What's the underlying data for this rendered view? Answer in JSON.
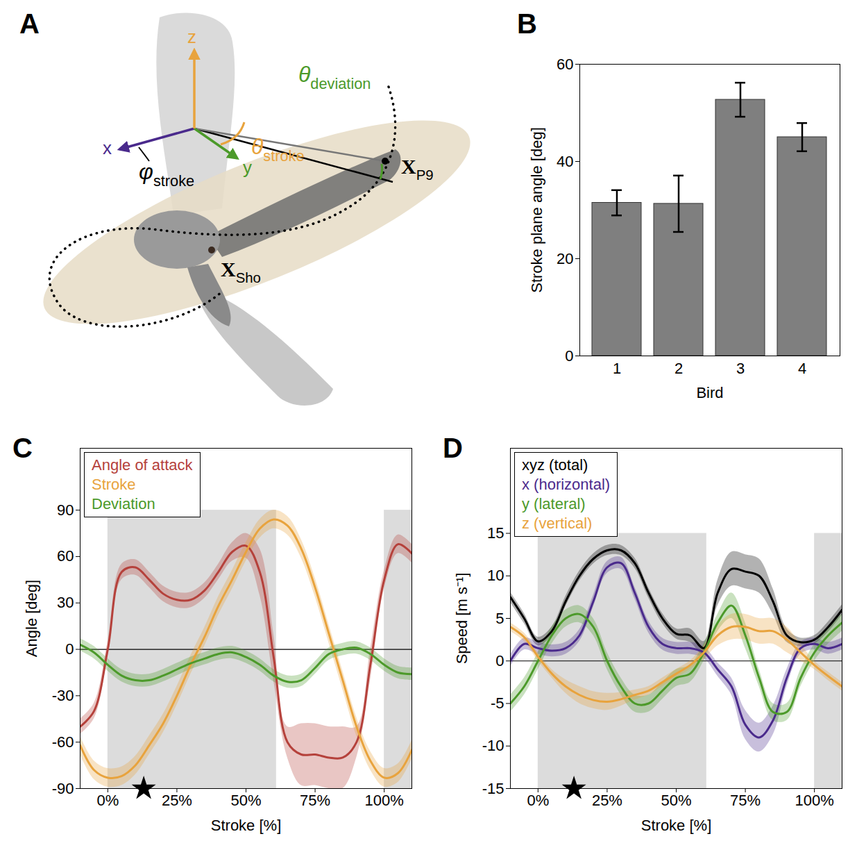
{
  "diagram": {
    "panel": "A",
    "axes": [
      {
        "name": "x",
        "color": "#4a2a8c"
      },
      {
        "name": "y",
        "color": "#4c9a2a"
      },
      {
        "name": "z",
        "color": "#e8a33d"
      }
    ],
    "angles": [
      {
        "symbol": "θ",
        "subscript": "deviation",
        "color": "#4c9a2a"
      },
      {
        "symbol": "θ",
        "subscript": "stroke",
        "color": "#e8a33d"
      },
      {
        "symbol": "φ",
        "subscript": "stroke",
        "color": "#000000"
      }
    ],
    "points": [
      {
        "symbol": "X",
        "subscript": "P9"
      },
      {
        "symbol": "X",
        "subscript": "Sho"
      }
    ]
  },
  "chart_data": [
    {
      "panel": "B",
      "type": "bar",
      "xlabel": "Bird",
      "ylabel": "Stroke plane angle [deg]",
      "categories": [
        "1",
        "2",
        "3",
        "4"
      ],
      "values": [
        31.5,
        31.3,
        52.7,
        45.0
      ],
      "errors": [
        2.6,
        5.8,
        3.5,
        2.9
      ],
      "color": "#7f7f7f",
      "ylim": [
        0,
        60
      ],
      "yticks": [
        0,
        20,
        40,
        60
      ]
    },
    {
      "panel": "C",
      "type": "line",
      "xlabel": "Stroke [%]",
      "ylabel": "Angle [deg]",
      "x": [
        -10,
        -5,
        0,
        5,
        10,
        15,
        20,
        25,
        30,
        35,
        40,
        45,
        50,
        55,
        60,
        65,
        70,
        75,
        80,
        85,
        90,
        95,
        100,
        105,
        110
      ],
      "xlim": [
        -10,
        110
      ],
      "xticks": [
        {
          "value": 0,
          "label": "0%"
        },
        {
          "value": 25,
          "label": "25%"
        },
        {
          "value": 50,
          "label": "50%"
        },
        {
          "value": 75,
          "label": "75%"
        },
        {
          "value": 100,
          "label": "100%"
        }
      ],
      "ylim": [
        -90,
        130
      ],
      "yticks": [
        -90,
        -60,
        -30,
        0,
        30,
        60,
        90
      ],
      "legend": "top-left",
      "hline": 0,
      "shaded": [
        {
          "x1": 0,
          "x2": 61,
          "y1": -90,
          "y2": 90
        },
        {
          "x1": 100,
          "x2": 110,
          "y1": -90,
          "y2": 90
        }
      ],
      "star_x": 13,
      "series": [
        {
          "name": "Angle of attack",
          "color": "#b5413b",
          "values": [
            -50,
            -40,
            0,
            50,
            53,
            45,
            36,
            32,
            32,
            38,
            50,
            63,
            67,
            50,
            -5,
            -60,
            -68,
            -68,
            -70,
            -70,
            -60,
            -10,
            45,
            68,
            62
          ],
          "errors": [
            5,
            5,
            5,
            5,
            5,
            5,
            5,
            5,
            5,
            5,
            5,
            6,
            8,
            15,
            15,
            10,
            20,
            20,
            20,
            20,
            10,
            10,
            6,
            6,
            6
          ]
        },
        {
          "name": "Stroke",
          "color": "#e8a33d",
          "values": [
            -62,
            -78,
            -83,
            -82,
            -75,
            -62,
            -48,
            -30,
            -10,
            8,
            28,
            45,
            63,
            78,
            84,
            80,
            65,
            40,
            10,
            -20,
            -50,
            -72,
            -83,
            -80,
            -65
          ],
          "errors": [
            6,
            6,
            6,
            6,
            6,
            6,
            6,
            6,
            6,
            6,
            6,
            6,
            6,
            6,
            6,
            6,
            6,
            6,
            6,
            6,
            6,
            6,
            6,
            6,
            6
          ]
        },
        {
          "name": "Deviation",
          "color": "#4c9a2a",
          "values": [
            3,
            -2,
            -10,
            -17,
            -20,
            -20,
            -17,
            -13,
            -9,
            -6,
            -3,
            -2,
            -5,
            -10,
            -17,
            -21,
            -20,
            -12,
            -3,
            0,
            1,
            -3,
            -10,
            -15,
            -16
          ],
          "errors": [
            4,
            4,
            4,
            4,
            4,
            4,
            4,
            4,
            4,
            4,
            4,
            4,
            4,
            4,
            4,
            4,
            4,
            4,
            4,
            4,
            4,
            4,
            4,
            4,
            4
          ]
        }
      ]
    },
    {
      "panel": "D",
      "type": "line",
      "xlabel": "Stroke [%]",
      "ylabel": "Speed [m s⁻¹]",
      "x": [
        -10,
        -5,
        0,
        5,
        10,
        15,
        20,
        25,
        30,
        35,
        40,
        45,
        50,
        55,
        60,
        65,
        70,
        75,
        80,
        85,
        90,
        95,
        100,
        105,
        110
      ],
      "xlim": [
        -10,
        110
      ],
      "xticks": [
        {
          "value": 0,
          "label": "0%"
        },
        {
          "value": 25,
          "label": "25%"
        },
        {
          "value": 50,
          "label": "50%"
        },
        {
          "value": 75,
          "label": "75%"
        },
        {
          "value": 100,
          "label": "100%"
        }
      ],
      "ylim": [
        -15,
        25
      ],
      "yticks": [
        -15,
        -10,
        -5,
        0,
        5,
        10,
        15
      ],
      "legend": "top-left",
      "hline": 0,
      "shaded": [
        {
          "x1": 0,
          "x2": 61,
          "y1": -15,
          "y2": 15
        },
        {
          "x1": 100,
          "x2": 110,
          "y1": -15,
          "y2": 15
        }
      ],
      "star_x": 13,
      "series": [
        {
          "name": "xyz (total)",
          "color": "#000000",
          "values": [
            7.5,
            5,
            2.3,
            3.5,
            7,
            10,
            12,
            13,
            13,
            11.5,
            8,
            5,
            3.2,
            3,
            1.5,
            8,
            10.8,
            10.5,
            10,
            7,
            3,
            2.2,
            2.5,
            4,
            6
          ],
          "errors": [
            0.6,
            0.6,
            0.5,
            0.5,
            0.6,
            0.6,
            0.6,
            0.6,
            0.6,
            0.6,
            0.6,
            0.6,
            0.6,
            0.8,
            0.8,
            1.5,
            2,
            2,
            2,
            1.5,
            0.8,
            0.5,
            0.5,
            0.6,
            0.6
          ]
        },
        {
          "name": "x (horizontal)",
          "color": "#4a2a8c",
          "values": [
            0,
            2,
            1.5,
            1.2,
            1.5,
            3,
            7,
            11,
            11.5,
            8,
            4,
            2,
            1.5,
            1.5,
            1,
            -1,
            -3,
            -7.5,
            -9,
            -7,
            -2,
            1.5,
            2,
            1.5,
            2
          ],
          "errors": [
            0.7,
            0.7,
            0.7,
            0.7,
            0.7,
            0.7,
            0.7,
            0.7,
            0.7,
            0.7,
            0.7,
            0.7,
            0.7,
            0.7,
            0.7,
            0.8,
            1,
            1.7,
            1.7,
            1.7,
            1,
            0.7,
            0.7,
            0.7,
            0.7
          ]
        },
        {
          "name": "y (lateral)",
          "color": "#4c9a2a",
          "values": [
            -5,
            -3,
            0,
            3,
            5,
            5.5,
            4,
            0,
            -3,
            -5,
            -5,
            -3.5,
            -2,
            -1.5,
            1,
            4.5,
            6.5,
            3,
            -2,
            -6,
            -6,
            -2,
            1,
            3,
            4.5
          ],
          "errors": [
            1,
            1,
            1,
            1,
            1,
            1,
            1,
            1,
            1,
            1,
            1,
            1,
            1,
            1,
            1,
            1,
            1.5,
            1.5,
            1,
            1,
            1,
            1,
            1,
            1,
            1
          ]
        },
        {
          "name": "z (vertical)",
          "color": "#e8a33d",
          "values": [
            4,
            2.8,
            0.5,
            -1.5,
            -3,
            -4,
            -4.6,
            -4.8,
            -4.5,
            -4,
            -3.5,
            -2.5,
            -1.5,
            -0.5,
            1,
            3,
            4,
            4,
            3.5,
            3.5,
            2.5,
            1,
            -0.5,
            -1.8,
            -3
          ],
          "errors": [
            0.5,
            0.5,
            0.5,
            0.5,
            0.8,
            1,
            1,
            1,
            0.8,
            0.6,
            0.5,
            0.5,
            0.5,
            0.5,
            0.8,
            1.2,
            1.5,
            1.5,
            1.5,
            1.5,
            1.5,
            1,
            0.5,
            0.5,
            0.5
          ]
        }
      ]
    }
  ]
}
